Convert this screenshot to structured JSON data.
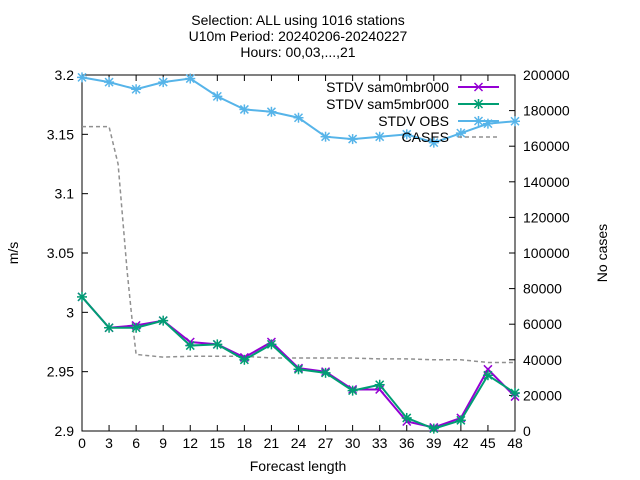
{
  "chart_data": {
    "type": "line",
    "title_lines": [
      "Selection: ALL using  1016 stations",
      "U10m   Period: 20240206-20240227",
      "Hours: 00,03,...,21"
    ],
    "xlabel": "Forecast length",
    "ylabel": "m/s",
    "y2label": "No cases",
    "xlim": [
      0,
      48
    ],
    "ylim": [
      2.9,
      3.2
    ],
    "y2lim": [
      0,
      200000
    ],
    "x": [
      0,
      3,
      6,
      9,
      12,
      15,
      18,
      21,
      24,
      27,
      30,
      33,
      36,
      39,
      42,
      45,
      48
    ],
    "xtick_labels": [
      "0",
      "3",
      "6",
      "9",
      "12",
      "15",
      "18",
      "21",
      "24",
      "27",
      "30",
      "33",
      "36",
      "39",
      "42",
      "45",
      "48"
    ],
    "ytick_labels": [
      "2.9",
      "2.95",
      "3",
      "3.05",
      "3.1",
      "3.15",
      "3.2"
    ],
    "y2tick_labels": [
      "0",
      "20000",
      "40000",
      "60000",
      "80000",
      "100000",
      "120000",
      "140000",
      "160000",
      "180000",
      "200000"
    ],
    "legend_position": "top-right",
    "grid": false,
    "series": [
      {
        "name": "STDV sam0mbr000",
        "color": "#9400d3",
        "axis": "y",
        "values": [
          3.013,
          2.987,
          2.989,
          2.993,
          2.975,
          2.973,
          2.962,
          2.975,
          2.953,
          2.95,
          2.935,
          2.935,
          2.908,
          2.903,
          2.911,
          2.952,
          2.929
        ]
      },
      {
        "name": "STDV sam5mbr000",
        "color": "#009e73",
        "axis": "y",
        "values": [
          3.013,
          2.987,
          2.987,
          2.993,
          2.972,
          2.973,
          2.96,
          2.973,
          2.952,
          2.949,
          2.934,
          2.939,
          2.911,
          2.902,
          2.909,
          2.947,
          2.932
        ]
      },
      {
        "name": "STDV OBS",
        "color": "#56b4e9",
        "axis": "y",
        "values": [
          3.198,
          3.194,
          3.188,
          3.194,
          3.197,
          3.182,
          3.171,
          3.169,
          3.164,
          3.148,
          3.146,
          3.148,
          3.15,
          3.143,
          3.151,
          3.159,
          3.161
        ]
      },
      {
        "name": "CASES",
        "color": "#909090",
        "axis": "y2",
        "x": [
          0,
          3,
          4,
          5,
          5.5,
          6,
          9,
          12,
          15,
          18,
          21,
          24,
          27,
          30,
          33,
          36,
          39,
          42,
          45,
          48
        ],
        "values": [
          171000,
          171000,
          150000,
          90000,
          65000,
          43000,
          41500,
          42000,
          42000,
          42000,
          41000,
          41000,
          41000,
          41000,
          40500,
          40500,
          40000,
          40000,
          38500,
          38500
        ]
      }
    ]
  }
}
